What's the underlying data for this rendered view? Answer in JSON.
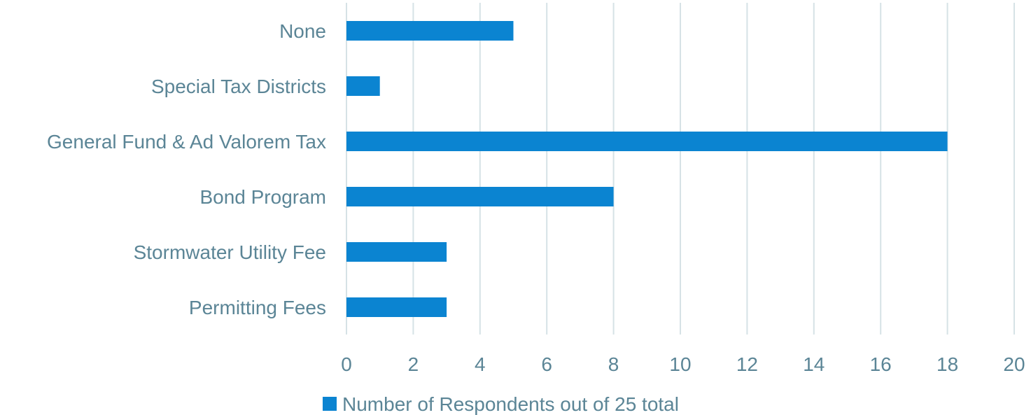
{
  "chart_data": {
    "type": "bar",
    "orientation": "horizontal",
    "categories": [
      "None",
      "Special Tax Districts",
      "General Fund & Ad Valorem Tax",
      "Bond Program",
      "Stormwater Utility Fee",
      "Permitting Fees"
    ],
    "series": [
      {
        "name": "Number of Respondents out of 25 total",
        "values": [
          5,
          1,
          18,
          8,
          3,
          3
        ]
      }
    ],
    "xlim": [
      0,
      20
    ],
    "xticks": [
      "0",
      "2",
      "4",
      "6",
      "8",
      "10",
      "12",
      "14",
      "16",
      "18",
      "20"
    ],
    "grid": "vertical",
    "legend_position": "bottom",
    "colors": {
      "bar": "#0b84d1",
      "text": "#5b8596",
      "grid": "#d6e2e6"
    }
  }
}
